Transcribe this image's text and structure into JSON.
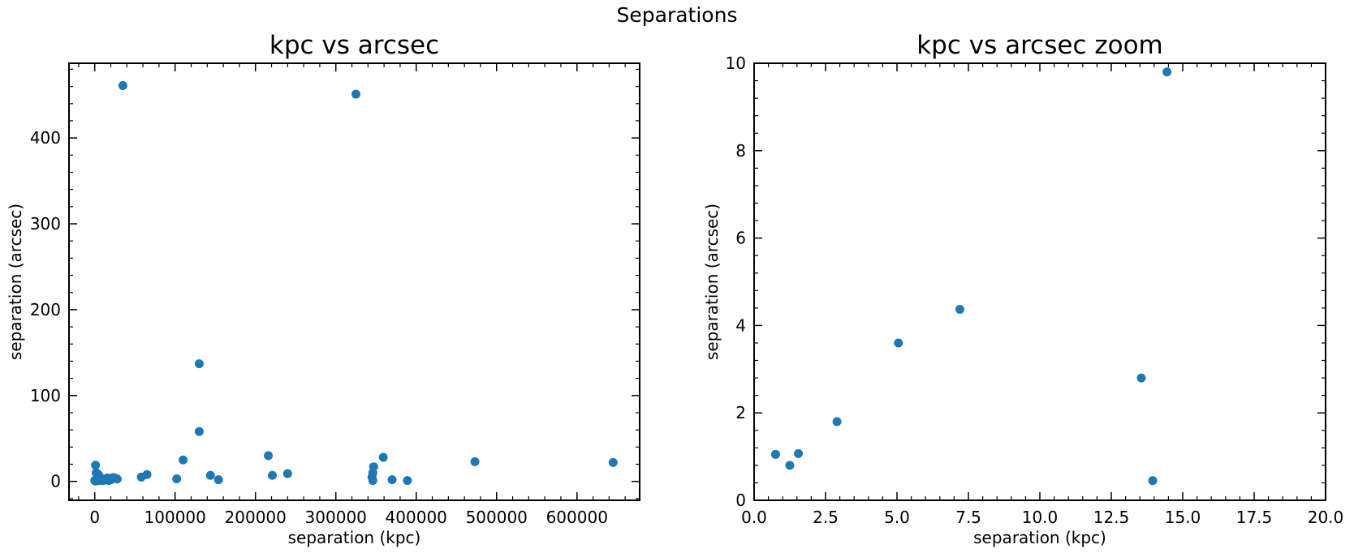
{
  "figure": {
    "suptitle": "Separations"
  },
  "chart_data": [
    {
      "type": "scatter",
      "title": "kpc vs arcsec",
      "xlabel": "separation (kpc)",
      "ylabel": "separation (arcsec)",
      "xlim": [
        -32000,
        678000
      ],
      "ylim": [
        -22,
        487
      ],
      "xticks": [
        0,
        100000,
        200000,
        300000,
        400000,
        500000,
        600000
      ],
      "xticklabels": [
        "0",
        "100000",
        "200000",
        "300000",
        "400000",
        "500000",
        "600000"
      ],
      "yticks": [
        0,
        100,
        200,
        300,
        400
      ],
      "yticklabels": [
        "0",
        "100",
        "200",
        "300",
        "400"
      ],
      "grid": false,
      "color": "#1f77b4",
      "x": [
        35000,
        325000,
        130000,
        130000,
        216000,
        110000,
        359000,
        473000,
        645000,
        347000,
        65000,
        240000,
        221000,
        144000,
        58000,
        346000,
        345000,
        102000,
        154000,
        370000,
        389000,
        346000,
        1000,
        2000,
        3500,
        4500,
        6500,
        8000,
        10500,
        12500,
        15500,
        17500,
        20000,
        22000,
        25000,
        5000,
        1000,
        3000,
        7000,
        13000,
        19000,
        23000,
        28000,
        2000,
        0
      ],
      "y": [
        461,
        451,
        137,
        58,
        30,
        25,
        28,
        23,
        22,
        17,
        8,
        9,
        7,
        7,
        5,
        10,
        5,
        3,
        2,
        2,
        1,
        1,
        19,
        10,
        2,
        8,
        5,
        2,
        1,
        2,
        4,
        1,
        2,
        3,
        4,
        1,
        0.4,
        0.8,
        1.1,
        1.8,
        3.6,
        4.4,
        2.8,
        9.8,
        1.0
      ]
    },
    {
      "type": "scatter",
      "title": "kpc vs arcsec zoom",
      "xlabel": "separation (kpc)",
      "ylabel": "separation (arcsec)",
      "xlim": [
        0,
        20
      ],
      "ylim": [
        0,
        10
      ],
      "xticks": [
        0,
        2.5,
        5,
        7.5,
        10,
        12.5,
        15,
        17.5,
        20
      ],
      "xticklabels": [
        "0.0",
        "2.5",
        "5.0",
        "7.5",
        "10.0",
        "12.5",
        "15.0",
        "17.5",
        "20.0"
      ],
      "yticks": [
        0,
        2,
        4,
        6,
        8,
        10
      ],
      "yticklabels": [
        "0",
        "2",
        "4",
        "6",
        "8",
        "10"
      ],
      "grid": false,
      "color": "#1f77b4",
      "x": [
        0.75,
        1.25,
        1.55,
        2.9,
        5.05,
        7.2,
        13.55,
        13.95,
        14.45
      ],
      "y": [
        1.05,
        0.8,
        1.07,
        1.8,
        3.6,
        4.37,
        2.8,
        0.45,
        9.8
      ]
    }
  ]
}
